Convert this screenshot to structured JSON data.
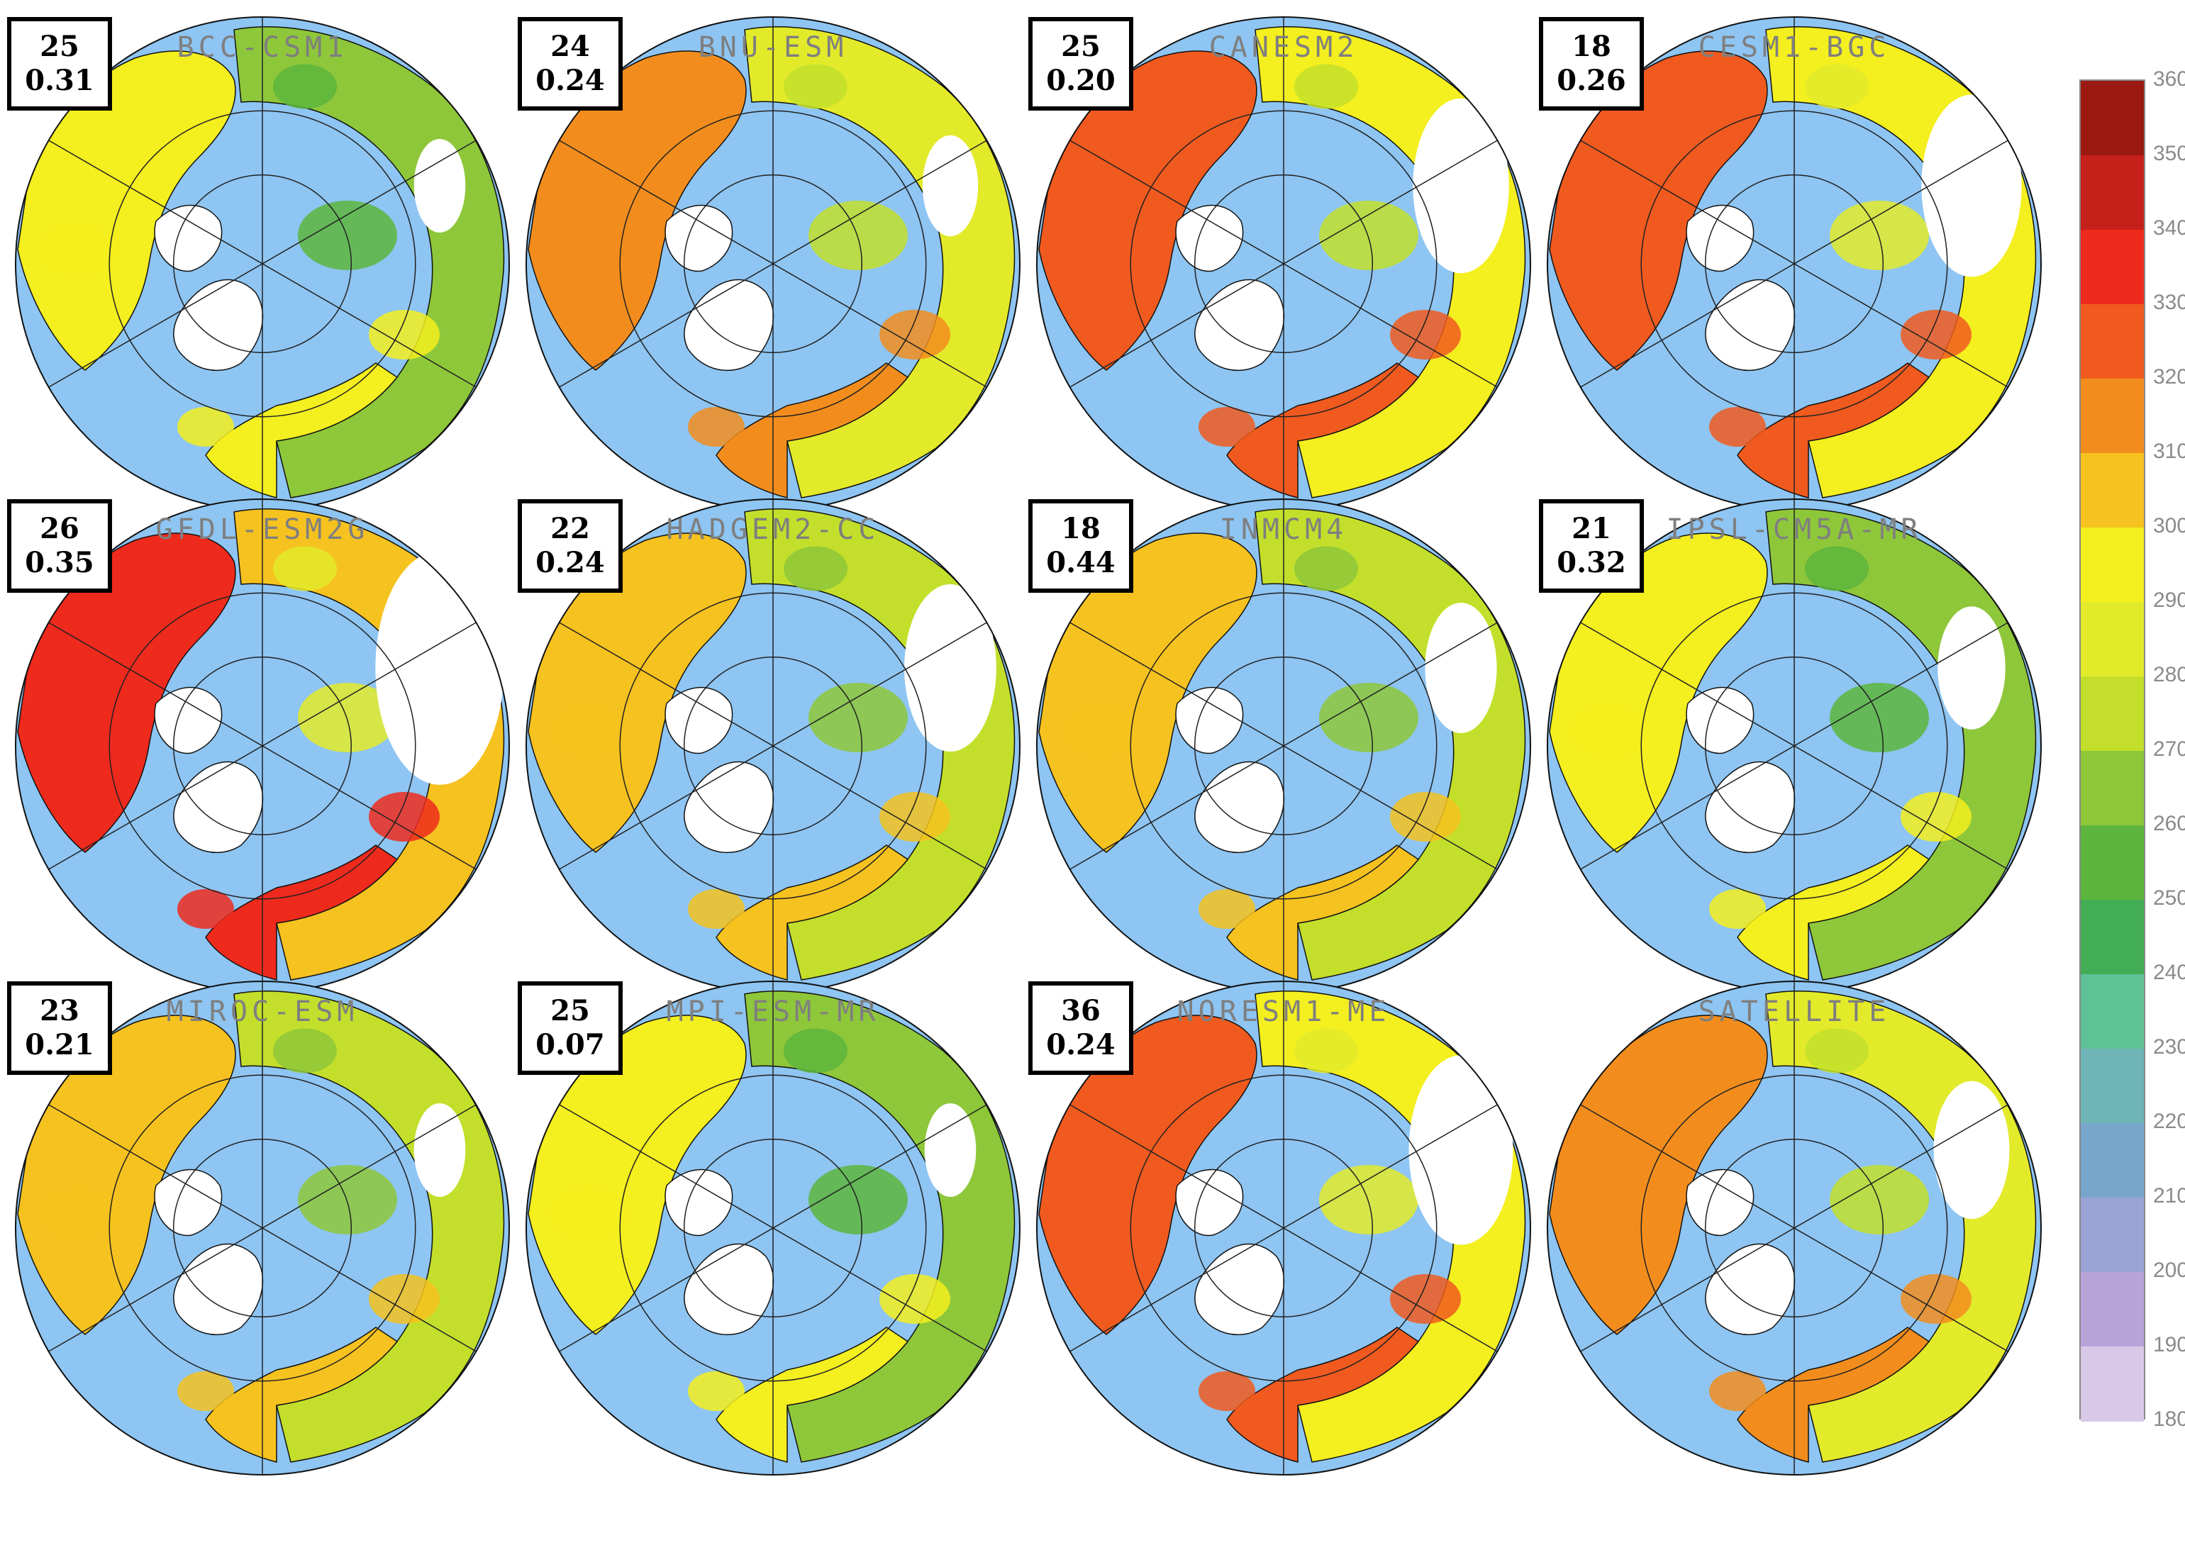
{
  "colors": {
    "ocean": "#8ec5f2",
    "no_data": "#ffffff",
    "outline": "#111111",
    "grid": "#222222"
  },
  "legend": {
    "ticks": [
      "360",
      "350",
      "340",
      "330",
      "320",
      "310",
      "300",
      "290",
      "280",
      "270",
      "260",
      "250",
      "240",
      "230",
      "220",
      "210",
      "200",
      "190",
      "180"
    ],
    "band_colors": [
      "#9a1a12",
      "#c5201a",
      "#ee2a1d",
      "#f05a1f",
      "#f28d1d",
      "#f6c21f",
      "#f4ef1f",
      "#e3ea2a",
      "#c3df2b",
      "#8ec73a",
      "#5db53d",
      "#43ad55",
      "#5fc196",
      "#6fb4b6",
      "#78a6cb",
      "#9aa3d6",
      "#b8a3d8",
      "#d8c9e8",
      "#efe6f4"
    ]
  },
  "panels": [
    {
      "title": "BCC-CSM1",
      "stat1": "25",
      "stat2": "0.31",
      "value": 268,
      "gap": 0.1
    },
    {
      "title": "BNU-ESM",
      "stat1": "24",
      "stat2": "0.24",
      "value": 282,
      "gap": 0.12
    },
    {
      "title": "CANESM2",
      "stat1": "25",
      "stat2": "0.20",
      "value": 290,
      "gap": 0.32
    },
    {
      "title": "CESM1-BGC",
      "stat1": "18",
      "stat2": "0.26",
      "value": 296,
      "gap": 0.34
    },
    {
      "title": "GFDL-ESM2G",
      "stat1": "26",
      "stat2": "0.35",
      "value": 300,
      "gap": 0.48
    },
    {
      "title": "HADGEM2-CC",
      "stat1": "22",
      "stat2": "0.24",
      "value": 278,
      "gap": 0.3
    },
    {
      "title": "INMCM4",
      "stat1": "18",
      "stat2": "0.44",
      "value": 276,
      "gap": 0.2
    },
    {
      "title": "IPSL-CM5A-MR",
      "stat1": "21",
      "stat2": "0.32",
      "value": 268,
      "gap": 0.18
    },
    {
      "title": "MIROC-ESM",
      "stat1": "23",
      "stat2": "0.21",
      "value": 272,
      "gap": 0.1
    },
    {
      "title": "MPI-ESM-MR",
      "stat1": "25",
      "stat2": "0.07",
      "value": 262,
      "gap": 0.1
    },
    {
      "title": "NORESM1-ME",
      "stat1": "36",
      "stat2": "0.24",
      "value": 292,
      "gap": 0.36
    },
    {
      "title": "SATELLITE",
      "stat1": "",
      "stat2": "",
      "value": 288,
      "gap": 0.22
    }
  ]
}
